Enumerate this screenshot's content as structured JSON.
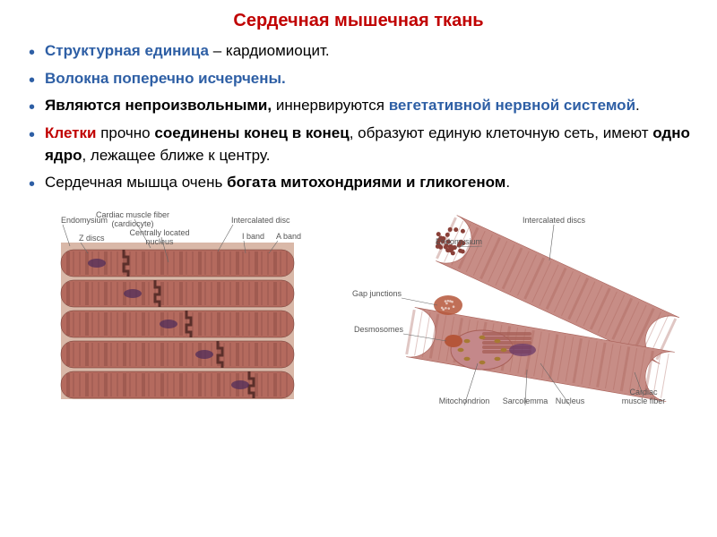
{
  "title": "Сердечная мышечная ткань",
  "title_color": "#c00000",
  "bullet_color": "#2e5fa5",
  "highlight_blue": "#2e5fa5",
  "highlight_red": "#c00000",
  "bullets": [
    {
      "segments": [
        {
          "text": "Структурная единица",
          "color": "#2e5fa5",
          "bold": true
        },
        {
          "text": " – кардиомиоцит.",
          "color": "#000000",
          "bold": false
        }
      ]
    },
    {
      "segments": [
        {
          "text": "Волокна поперечно исчерчены.",
          "color": "#2e5fa5",
          "bold": true
        }
      ]
    },
    {
      "segments": [
        {
          "text": "Являются непроизвольными,",
          "color": "#000000",
          "bold": true
        },
        {
          "text": " иннервируются ",
          "color": "#000000",
          "bold": false
        },
        {
          "text": "вегетативной нервной системой",
          "color": "#2e5fa5",
          "bold": true
        },
        {
          "text": ".",
          "color": "#000000",
          "bold": false
        }
      ]
    },
    {
      "segments": [
        {
          "text": "Клетки",
          "color": "#c00000",
          "bold": true
        },
        {
          "text": " прочно ",
          "color": "#000000",
          "bold": false
        },
        {
          "text": "соединены конец в конец",
          "color": "#000000",
          "bold": true
        },
        {
          "text": ", образуют единую клеточную сеть, имеют ",
          "color": "#000000",
          "bold": false
        },
        {
          "text": "одно ядро",
          "color": "#000000",
          "bold": true
        },
        {
          "text": ", лежащее ближе к центру.",
          "color": "#000000",
          "bold": false
        }
      ]
    },
    {
      "justify": true,
      "segments": [
        {
          "text": "Сердечная мышца очень ",
          "color": "#000000",
          "bold": false
        },
        {
          "text": "богата митохондриями и гликогеном",
          "color": "#000000",
          "bold": true
        },
        {
          "text": ".",
          "color": "#000000",
          "bold": false
        }
      ]
    }
  ],
  "left_diagram": {
    "labels": {
      "endomysium": "Endomysium",
      "fiber": "Cardiac muscle fiber\n(cardiocyte)",
      "intercalated": "Intercalated disc",
      "zdisc": "Z discs",
      "nucleus": "Centrally located\nnucleus",
      "iband": "I band",
      "aband": "A band"
    },
    "label_fontsize": 9,
    "fiber_fill": "#b46a5e",
    "fiber_stroke": "#6a3a33",
    "dark_band": "#7a3f39",
    "intercalated_color": "#5b2f2a",
    "nucleus_color": "#4a2a5a",
    "endomysium_color": "#d9b8a8",
    "leader_color": "#666666"
  },
  "right_diagram": {
    "labels": {
      "intercalated": "Intercalated discs",
      "endomysium": "Endomysium",
      "gap": "Gap junctions",
      "desmosomes": "Desmosomes",
      "mitochondrion": "Mitochondrion",
      "sarcolemma": "Sarcolemma",
      "nucleus": "Nucleus",
      "fiber": "Cardiac\nmuscle fiber"
    },
    "label_fontsize": 9,
    "outer_fill": "#c78d86",
    "inner_fill": "#a86058",
    "cut_face": "#c4888a",
    "nucleus_color": "#6a3a6a",
    "mito_color": "#a67a32",
    "junction_color": "#b5563a",
    "endomysium_dot": "#8a4038",
    "leader_color": "#666666"
  }
}
